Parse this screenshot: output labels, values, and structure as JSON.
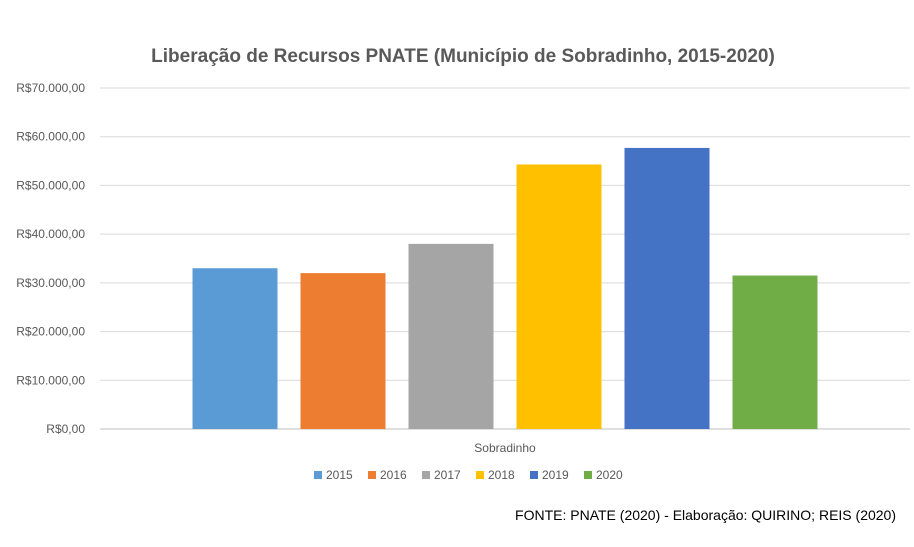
{
  "chart_data": {
    "type": "bar",
    "title": "Liberação de Recursos PNATE (Município de Sobradinho, 2015-2020)",
    "categories": [
      "Sobradinho"
    ],
    "series": [
      {
        "name": "2015",
        "values": [
          33000
        ],
        "color": "#5B9BD5"
      },
      {
        "name": "2016",
        "values": [
          32000
        ],
        "color": "#ED7D31"
      },
      {
        "name": "2017",
        "values": [
          38000
        ],
        "color": "#A5A5A5"
      },
      {
        "name": "2018",
        "values": [
          54300
        ],
        "color": "#FFC000"
      },
      {
        "name": "2019",
        "values": [
          57700
        ],
        "color": "#4472C4"
      },
      {
        "name": "2020",
        "values": [
          31500
        ],
        "color": "#70AD47"
      }
    ],
    "ylim": [
      0,
      70000
    ],
    "yticks": [
      0,
      10000,
      20000,
      30000,
      40000,
      50000,
      60000,
      70000
    ],
    "ytick_labels": [
      "R$0,00",
      "R$10.000,00",
      "R$20.000,00",
      "R$30.000,00",
      "R$40.000,00",
      "R$50.000,00",
      "R$60.000,00",
      "R$70.000,00"
    ],
    "grid": true,
    "legend_position": "bottom"
  },
  "source_note": "FONTE: PNATE (2020) - Elaboração: QUIRINO; REIS (2020)"
}
